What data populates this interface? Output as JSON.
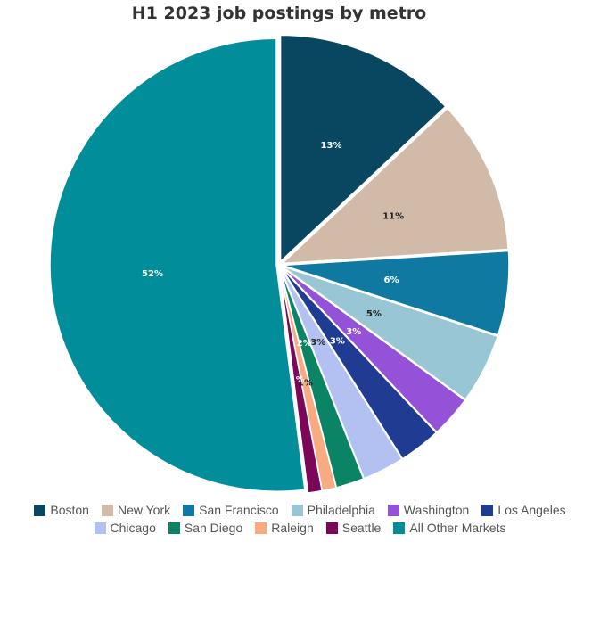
{
  "chart_data": {
    "type": "pie",
    "title": "H1 2023 job postings by metro",
    "labels": [
      "Boston",
      "New York",
      "San Francisco",
      "Philadelphia",
      "Washington",
      "Los Angeles",
      "Chicago",
      "San Diego",
      "Raleigh",
      "Seattle",
      "All Other Markets"
    ],
    "values": [
      13,
      11,
      6,
      5,
      3,
      3,
      3,
      2,
      1,
      1,
      52
    ],
    "value_labels": [
      "13%",
      "11%",
      "6%",
      "5%",
      "3%",
      "3%",
      "3%",
      "2%",
      "1%",
      "1%",
      "52%"
    ],
    "colors": [
      "#08475f",
      "#d2baa9",
      "#0f79a1",
      "#98c6d5",
      "#9452d8",
      "#1f3c92",
      "#b2c1f2",
      "#0b8465",
      "#f8ab81",
      "#7c0758",
      "#018d9a"
    ],
    "label_colors": [
      "#ffffff",
      "#222222",
      "#ffffff",
      "#222222",
      "#ffffff",
      "#ffffff",
      "#222222",
      "#ffffff",
      "#222222",
      "#ffffff",
      "#ffffff"
    ],
    "legend_position": "bottom"
  }
}
